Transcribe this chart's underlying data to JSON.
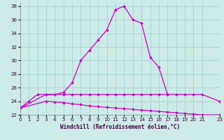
{
  "xlabel": "Windchill (Refroidissement éolien,°C)",
  "background_color": "#cceae7",
  "line_color": "#cc00cc",
  "grid_color": "#99cccc",
  "x_hours": [
    0,
    1,
    2,
    3,
    4,
    5,
    6,
    7,
    8,
    9,
    10,
    11,
    12,
    13,
    14,
    15,
    16,
    17,
    18,
    19,
    20,
    21,
    23
  ],
  "curve1": [
    23.0,
    24.0,
    25.0,
    25.0,
    25.0,
    25.3,
    26.7,
    30.0,
    31.5,
    33.0,
    34.5,
    37.5,
    38.0,
    36.0,
    35.5,
    30.5,
    29.0,
    25.0,
    null,
    null,
    null,
    null,
    null
  ],
  "curve2": [
    23.0,
    null,
    null,
    25.0,
    25.0,
    25.0,
    25.0,
    25.0,
    25.0,
    25.0,
    25.0,
    25.0,
    25.0,
    25.0,
    25.0,
    25.0,
    25.0,
    25.0,
    25.0,
    25.0,
    25.0,
    25.0,
    24.0
  ],
  "curve3": [
    23.0,
    null,
    null,
    24.0,
    23.9,
    23.8,
    23.6,
    23.5,
    23.3,
    23.2,
    23.1,
    23.0,
    22.9,
    22.8,
    22.7,
    22.6,
    22.5,
    22.4,
    22.3,
    22.2,
    22.1,
    22.0,
    22.0
  ],
  "xlim": [
    0,
    23
  ],
  "ylim": [
    22,
    38.5
  ],
  "yticks": [
    22,
    24,
    26,
    28,
    30,
    32,
    34,
    36,
    38
  ],
  "xtick_labels": [
    "0",
    "1",
    "2",
    "3",
    "4",
    "5",
    "6",
    "7",
    "8",
    "9",
    "10",
    "11",
    "12",
    "13",
    "14",
    "15",
    "16",
    "17",
    "18",
    "19",
    "20",
    "21",
    "23"
  ],
  "xtick_vals": [
    0,
    1,
    2,
    3,
    4,
    5,
    6,
    7,
    8,
    9,
    10,
    11,
    12,
    13,
    14,
    15,
    16,
    17,
    18,
    19,
    20,
    21,
    23
  ],
  "tick_fontsize": 5.0,
  "xlabel_fontsize": 5.5,
  "marker": "D",
  "markersize": 2.0,
  "linewidth": 0.9
}
